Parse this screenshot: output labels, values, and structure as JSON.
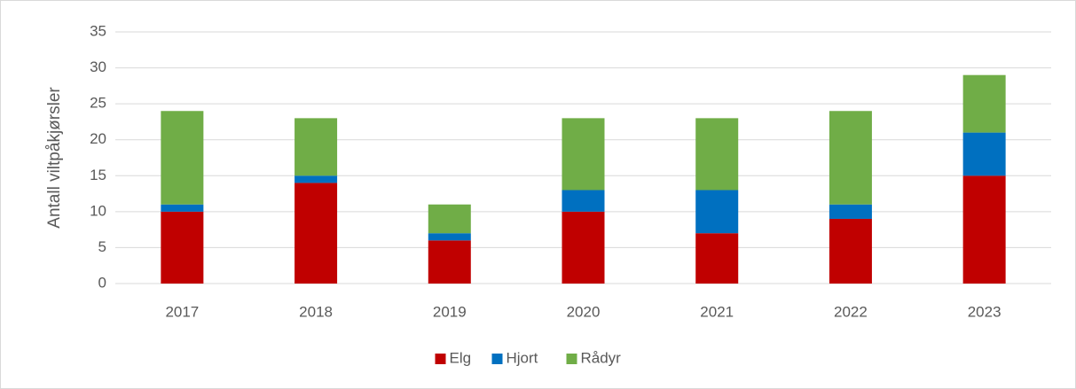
{
  "chart_data": {
    "type": "bar",
    "stacked": true,
    "ylabel": "Antall viltpåkjørsler",
    "categories": [
      "2017",
      "2018",
      "2019",
      "2020",
      "2021",
      "2022",
      "2023"
    ],
    "series": [
      {
        "name": "Elg",
        "color": "#c00000",
        "values": [
          10,
          14,
          6,
          10,
          7,
          9,
          15
        ]
      },
      {
        "name": "Hjort",
        "color": "#0070c0",
        "values": [
          1,
          1,
          1,
          3,
          6,
          2,
          6
        ]
      },
      {
        "name": "Rådyr",
        "color": "#70ad47",
        "values": [
          13,
          8,
          4,
          10,
          10,
          13,
          8
        ]
      }
    ],
    "ylim": [
      0,
      35
    ],
    "yticks": [
      0,
      5,
      10,
      15,
      20,
      25,
      30,
      35
    ],
    "grid": true,
    "legend": "bottom"
  }
}
